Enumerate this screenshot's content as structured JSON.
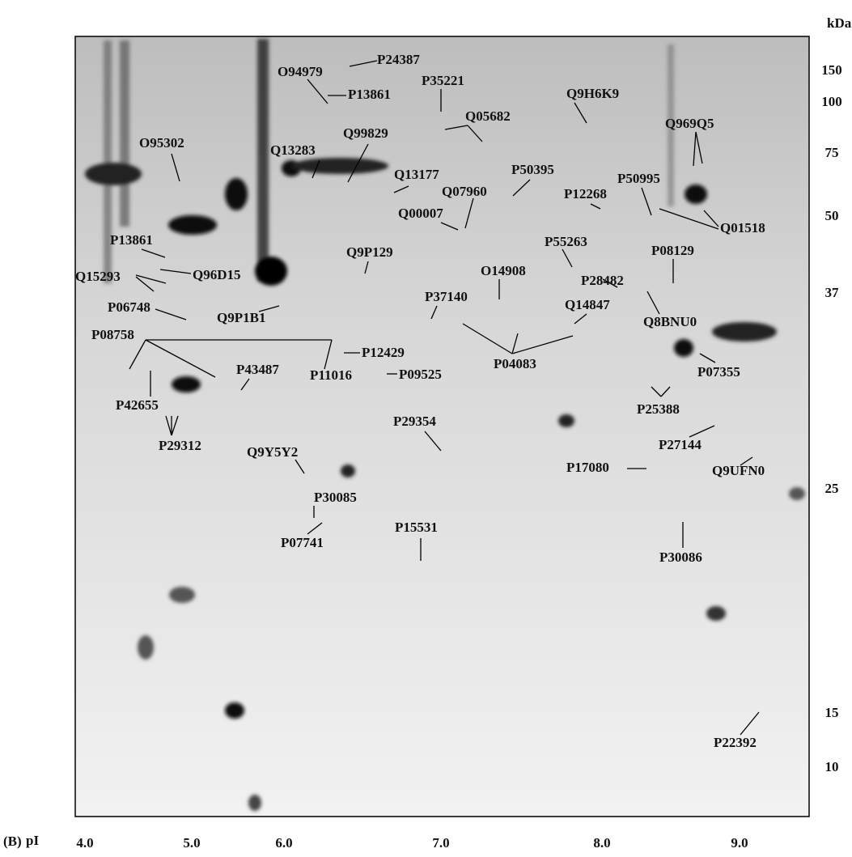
{
  "figure": {
    "panel": "(B)",
    "x_axis_label": "pI",
    "x_ticks": [
      "4.0",
      "5.0",
      "6.0",
      "7.0",
      "8.0",
      "9.0"
    ],
    "y_unit": "kDa",
    "y_ticks": [
      "150",
      "100",
      "75",
      "50",
      "37",
      "25",
      "15",
      "10"
    ],
    "labels": [
      "P24387",
      "O94979",
      "P13861",
      "P35221",
      "Q9H6K9",
      "Q05682",
      "Q969Q5",
      "O95302",
      "Q99829",
      "Q13283",
      "Q13177",
      "P50395",
      "Q07960",
      "P50995",
      "P12268",
      "Q00007",
      "Q01518",
      "P13861",
      "Q9P129",
      "P55263",
      "P08129",
      "Q15293",
      "Q96D15",
      "O14908",
      "P28482",
      "P06748",
      "Q9P1B1",
      "P37140",
      "Q14847",
      "Q8BNU0",
      "P08758",
      "P12429",
      "P04083",
      "P11016",
      "P09525",
      "P43487",
      "P07355",
      "P42655",
      "P25388",
      "P29354",
      "P29312",
      "P27144",
      "Q9Y5Y2",
      "P17080",
      "Q9UFN0",
      "P30085",
      "P15531",
      "P07741",
      "P30086",
      "P22392"
    ]
  }
}
